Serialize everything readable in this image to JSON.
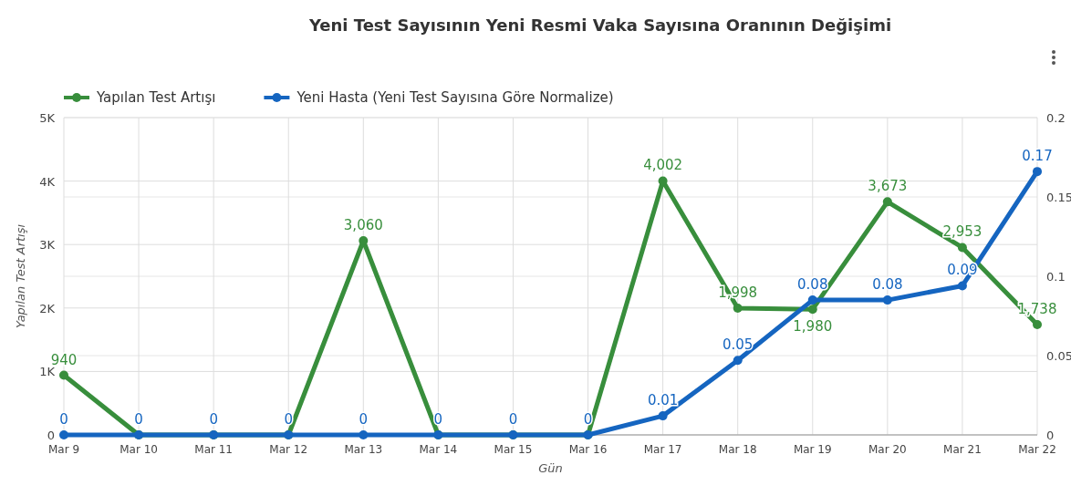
{
  "chart_data": {
    "type": "line",
    "title": "Yeni Test Sayısının Yeni Resmi Vaka Sayısına Oranının Değişimi",
    "xlabel": "Gün",
    "ylabel": "Yapılan Test Artışı",
    "categories": [
      "Mar 9",
      "Mar 10",
      "Mar 11",
      "Mar 12",
      "Mar 13",
      "Mar 14",
      "Mar 15",
      "Mar 16",
      "Mar 17",
      "Mar 18",
      "Mar 19",
      "Mar 20",
      "Mar 21",
      "Mar 22"
    ],
    "series": [
      {
        "name": "Yapılan Test Artışı",
        "color": "#388e3c",
        "values": [
          940,
          0,
          0,
          0,
          3060,
          0,
          0,
          0,
          4002,
          1998,
          1980,
          3673,
          2953,
          1738
        ],
        "value_labels": [
          "940",
          null,
          null,
          null,
          "3,060",
          null,
          null,
          null,
          "4,002",
          "1,998",
          "1,980",
          "3,673",
          "2,953",
          "1,738"
        ]
      },
      {
        "name": "Yeni Hasta (Yeni Test Sayısına Göre Normalize)",
        "color": "#1565c0",
        "axis": "y2",
        "values": [
          0,
          0,
          0,
          0,
          0,
          0,
          0,
          0,
          0.012,
          0.047,
          0.085,
          0.085,
          0.094,
          0.166
        ],
        "value_labels": [
          "0",
          "0",
          "0",
          "0",
          "0",
          "0",
          "0",
          "0",
          "0.01",
          "0.05",
          "0.08",
          "0.08",
          "0.09",
          "0.17"
        ]
      }
    ],
    "ylim": [
      0,
      5000
    ],
    "yticks": [
      {
        "value": 0,
        "label": "0"
      },
      {
        "value": 1000,
        "label": "1K"
      },
      {
        "value": 2000,
        "label": "2K"
      },
      {
        "value": 3000,
        "label": "3K"
      },
      {
        "value": 4000,
        "label": "4K"
      },
      {
        "value": 5000,
        "label": "5K"
      }
    ],
    "y2lim": [
      0,
      0.2
    ],
    "y2ticks": [
      0,
      0.05,
      0.1,
      0.15,
      0.2
    ],
    "grid": true,
    "legend": "top left",
    "marker": "circle",
    "line_style": "solid"
  }
}
